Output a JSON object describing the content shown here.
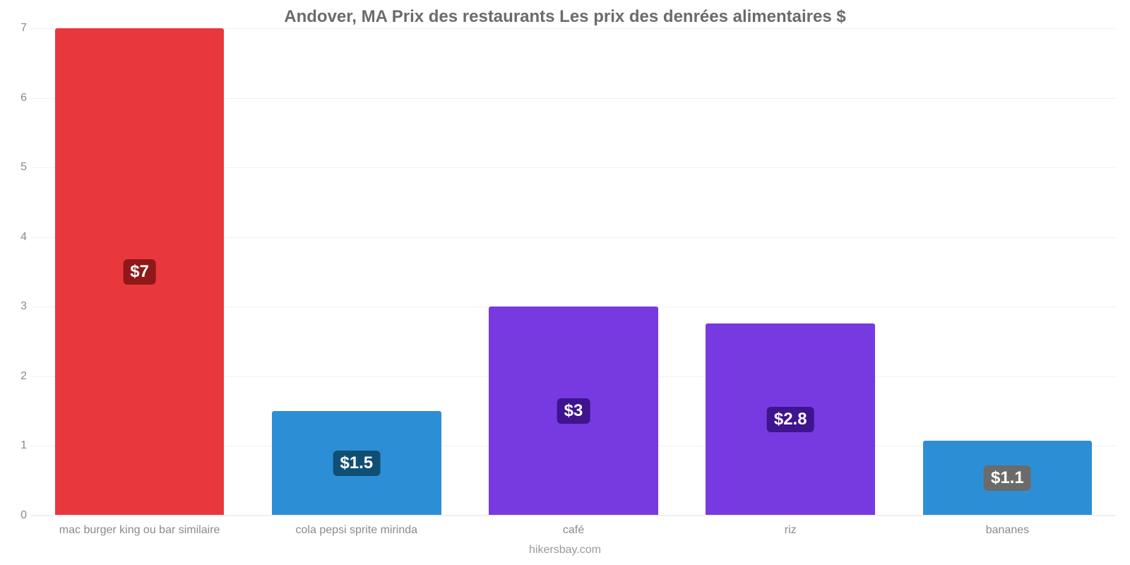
{
  "chart": {
    "type": "bar",
    "title": "Andover, MA Prix des restaurants Les prix des denrées alimentaires $",
    "title_color": "#6b6b6b",
    "title_fontsize": 24,
    "footer": "hikersbay.com",
    "footer_color": "#9a9a9a",
    "footer_fontsize": 16,
    "background_color": "#ffffff",
    "grid_color": "#f3f1f0",
    "axis_label_color": "#8a8a8a",
    "axis_fontsize": 16,
    "ylim": [
      0,
      7
    ],
    "ytick_step": 1,
    "yticks": [
      "0",
      "1",
      "2",
      "3",
      "4",
      "5",
      "6",
      "7"
    ],
    "bar_width": 0.78,
    "value_label_fontsize": 24,
    "value_label_text_color": "#ffffff",
    "categories": [
      "mac burger king ou bar similaire",
      "cola pepsi sprite mirinda",
      "café",
      "riz",
      "bananes"
    ],
    "values": [
      7,
      1.5,
      3,
      2.76,
      1.08
    ],
    "value_labels": [
      "$7",
      "$1.5",
      "$3",
      "$2.8",
      "$1.1"
    ],
    "bar_colors": [
      "#e8383d",
      "#2c8fd6",
      "#773ae0",
      "#773ae0",
      "#2c8fd6"
    ],
    "pill_colors": [
      "#8f1818",
      "#104f74",
      "#3e148f",
      "#3e148f",
      "#6b6b6b"
    ]
  }
}
